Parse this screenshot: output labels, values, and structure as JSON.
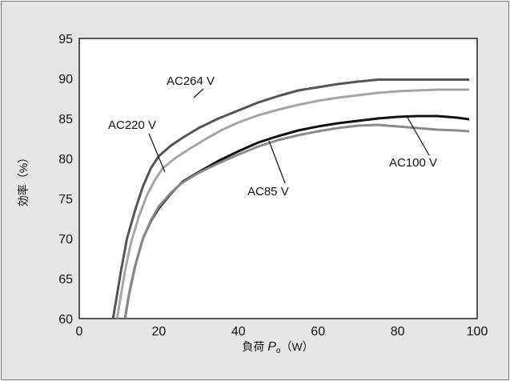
{
  "chart_data": {
    "type": "line",
    "xlabel": "負荷 Pₒ (W)",
    "xlabel_parts": {
      "prefix": "負荷 ",
      "symbol": "P",
      "subscript": "o",
      "suffix": "（W）"
    },
    "ylabel": "効率（%）",
    "xlim": [
      0,
      100
    ],
    "ylim": [
      60,
      95
    ],
    "xticks": [
      0,
      20,
      40,
      60,
      80,
      100
    ],
    "yticks": [
      60,
      65,
      70,
      75,
      80,
      85,
      90,
      95
    ],
    "grid": false,
    "background": "#e6e6e6",
    "series": [
      {
        "name": "AC264 V",
        "color": "#555555",
        "points": [
          [
            8.5,
            60
          ],
          [
            9.5,
            63
          ],
          [
            10.5,
            66
          ],
          [
            12,
            70
          ],
          [
            14,
            73.5
          ],
          [
            16,
            76.5
          ],
          [
            18,
            78.8
          ],
          [
            20,
            80.3
          ],
          [
            23,
            81.6
          ],
          [
            26,
            82.6
          ],
          [
            30,
            83.8
          ],
          [
            35,
            85
          ],
          [
            40,
            86
          ],
          [
            45,
            87
          ],
          [
            50,
            87.8
          ],
          [
            55,
            88.5
          ],
          [
            60,
            88.9
          ],
          [
            65,
            89.3
          ],
          [
            70,
            89.6
          ],
          [
            75,
            89.85
          ],
          [
            80,
            89.85
          ],
          [
            85,
            89.85
          ],
          [
            90,
            89.85
          ],
          [
            95,
            89.85
          ],
          [
            98,
            89.85
          ]
        ]
      },
      {
        "name": "AC220 V",
        "color": "#a5a5a5",
        "points": [
          [
            9.5,
            60
          ],
          [
            10.5,
            63
          ],
          [
            11.5,
            66
          ],
          [
            13,
            69.5
          ],
          [
            15,
            72.8
          ],
          [
            17,
            75.4
          ],
          [
            19,
            77.3
          ],
          [
            21,
            78.8
          ],
          [
            24,
            80
          ],
          [
            28,
            81.3
          ],
          [
            32,
            82.5
          ],
          [
            36,
            83.6
          ],
          [
            40,
            84.5
          ],
          [
            45,
            85.4
          ],
          [
            50,
            86.1
          ],
          [
            55,
            86.7
          ],
          [
            60,
            87.2
          ],
          [
            65,
            87.6
          ],
          [
            70,
            87.9
          ],
          [
            75,
            88.2
          ],
          [
            80,
            88.4
          ],
          [
            85,
            88.5
          ],
          [
            90,
            88.6
          ],
          [
            95,
            88.6
          ],
          [
            98,
            88.6
          ]
        ]
      },
      {
        "name": "AC100 V",
        "color": "#111111",
        "points": [
          [
            11.5,
            60
          ],
          [
            12.5,
            63
          ],
          [
            14,
            66.5
          ],
          [
            16,
            70
          ],
          [
            18,
            72.2
          ],
          [
            20,
            73.8
          ],
          [
            23,
            75.6
          ],
          [
            26,
            77.1
          ],
          [
            30,
            78.3
          ],
          [
            35,
            79.7
          ],
          [
            40,
            80.9
          ],
          [
            45,
            82
          ],
          [
            50,
            82.8
          ],
          [
            55,
            83.5
          ],
          [
            60,
            84
          ],
          [
            65,
            84.4
          ],
          [
            70,
            84.7
          ],
          [
            75,
            85
          ],
          [
            80,
            85.2
          ],
          [
            85,
            85.3
          ],
          [
            90,
            85.3
          ],
          [
            95,
            85.1
          ],
          [
            98,
            84.9
          ]
        ]
      },
      {
        "name": "AC85 V",
        "color": "#8a8a8a",
        "points": [
          [
            11.5,
            60
          ],
          [
            12.5,
            63
          ],
          [
            14,
            66.5
          ],
          [
            16,
            70
          ],
          [
            18,
            72.3
          ],
          [
            20,
            74
          ],
          [
            23,
            75.7
          ],
          [
            26,
            77
          ],
          [
            30,
            78.2
          ],
          [
            35,
            79.4
          ],
          [
            40,
            80.5
          ],
          [
            45,
            81.5
          ],
          [
            50,
            82.3
          ],
          [
            55,
            82.9
          ],
          [
            60,
            83.4
          ],
          [
            65,
            83.8
          ],
          [
            70,
            84.1
          ],
          [
            75,
            84.2
          ],
          [
            80,
            84
          ],
          [
            85,
            83.8
          ],
          [
            90,
            83.6
          ],
          [
            95,
            83.5
          ],
          [
            98,
            83.4
          ]
        ]
      }
    ]
  }
}
